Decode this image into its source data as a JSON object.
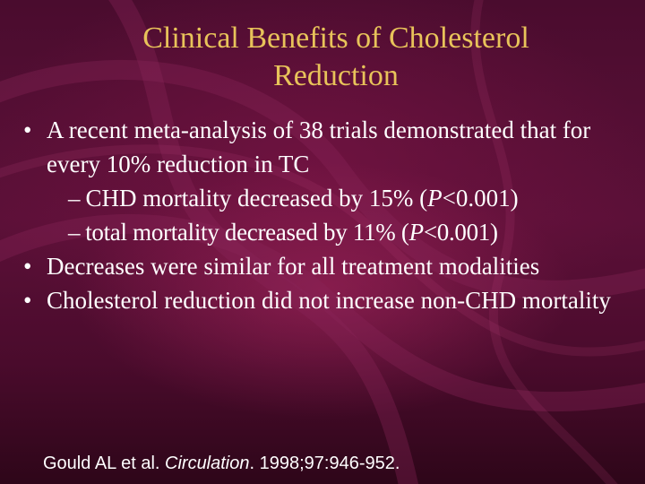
{
  "title": {
    "line1": "Clinical Benefits of Cholesterol",
    "line2": "Reduction"
  },
  "bullets": [
    {
      "text": "A recent meta-analysis of 38 trials demonstrated that for every 10% reduction in TC",
      "sub": [
        {
          "dash": "–",
          "before": "CHD mortality decreased by 15% (",
          "italic": "P",
          "after": "<0.001)"
        },
        {
          "dash": "–",
          "before": "total mortality decreased by 11% (",
          "italic": "P",
          "after": "<0.001)"
        }
      ]
    },
    {
      "text": "Decreases were similar for all treatment modalities"
    },
    {
      "text": "Cholesterol reduction did not increase non-CHD mortality"
    }
  ],
  "bullet_glyph": "•",
  "citation": {
    "authors": "Gould AL et al. ",
    "journal": "Circulation",
    "details": ". 1998;97:946-952."
  },
  "colors": {
    "background": "#5c1038",
    "title": "#e8c35a",
    "text": "#ffffff"
  }
}
